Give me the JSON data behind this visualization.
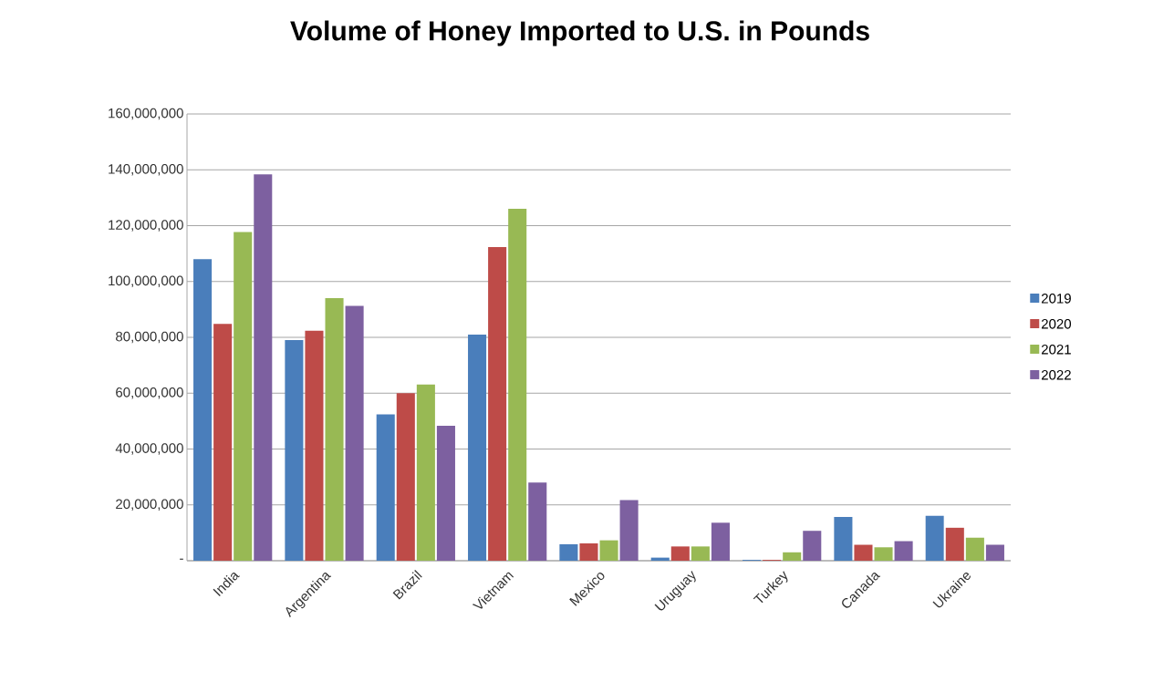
{
  "chart_data": {
    "type": "bar",
    "title": "Volume of Honey Imported to U.S. in Pounds",
    "categories": [
      "India",
      "Argentina",
      "Brazil",
      "Vietnam",
      "Mexico",
      "Uruguay",
      "Turkey",
      "Canada",
      "Ukraine"
    ],
    "series": [
      {
        "name": "2019",
        "color": "#4a7ebb",
        "values": [
          108000000,
          79000000,
          52400000,
          81000000,
          5900000,
          1100000,
          300000,
          15700000,
          16100000
        ]
      },
      {
        "name": "2020",
        "color": "#be4b48",
        "values": [
          84800000,
          82400000,
          60000000,
          112300000,
          6200000,
          5100000,
          300000,
          5700000,
          11800000
        ]
      },
      {
        "name": "2021",
        "color": "#98b954",
        "values": [
          117700000,
          94000000,
          63100000,
          126000000,
          7300000,
          5100000,
          3000000,
          4800000,
          8200000
        ]
      },
      {
        "name": "2022",
        "color": "#7d60a0",
        "values": [
          138400000,
          91300000,
          48300000,
          28000000,
          21700000,
          13600000,
          10700000,
          7000000,
          5700000
        ]
      }
    ],
    "ylim": [
      0,
      160000000
    ],
    "yticks": [
      {
        "value": 0,
        "label": "-"
      },
      {
        "value": 20000000,
        "label": "20,000,000"
      },
      {
        "value": 40000000,
        "label": "40,000,000"
      },
      {
        "value": 60000000,
        "label": "60,000,000"
      },
      {
        "value": 80000000,
        "label": "80,000,000"
      },
      {
        "value": 100000000,
        "label": "100,000,000"
      },
      {
        "value": 120000000,
        "label": "120,000,000"
      },
      {
        "value": 140000000,
        "label": "140,000,000"
      },
      {
        "value": 160000000,
        "label": "160,000,000"
      }
    ],
    "grid": "y",
    "legend": "right"
  }
}
